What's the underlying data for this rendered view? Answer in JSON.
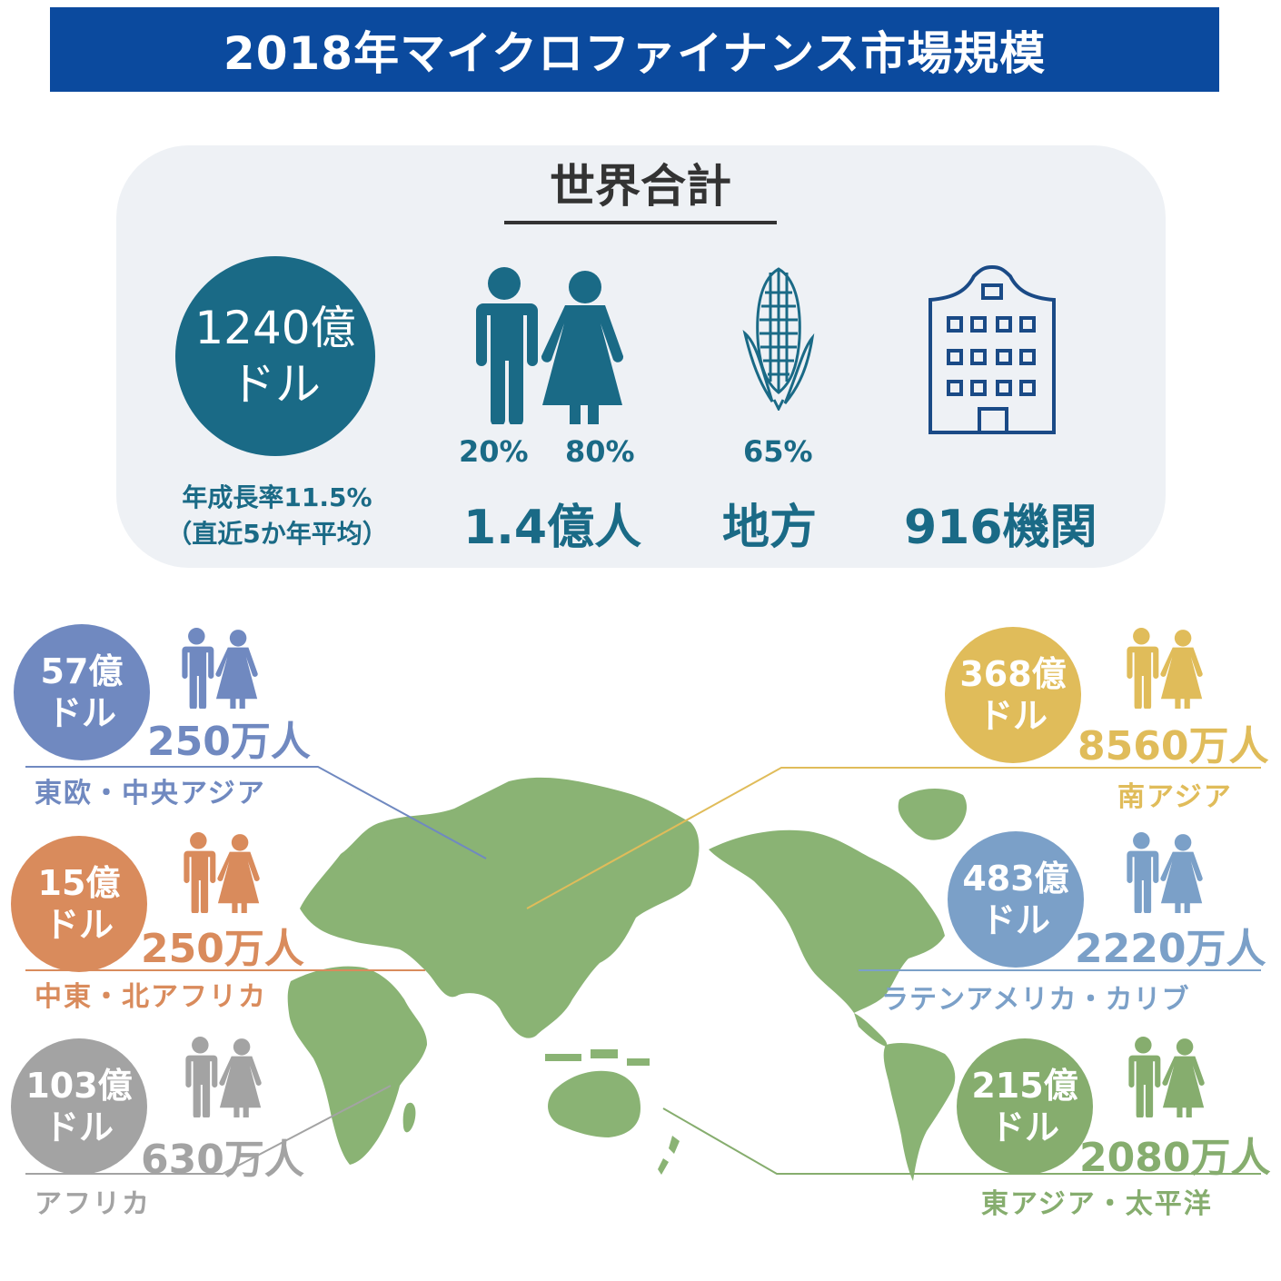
{
  "title": "2018年マイクロファイナンス市場規模",
  "world": {
    "heading": "世界合計",
    "total_line1": "1240億",
    "total_line2": "ドル",
    "growth_line1": "年成長率11.5%",
    "growth_line2": "（直近5か年平均）",
    "male_pct": "20%",
    "female_pct": "80%",
    "borrowers": "1.4億人",
    "rural_pct": "65%",
    "rural_label": "地方",
    "institutions": "916機関"
  },
  "regions": {
    "eeca": {
      "amount_line1": "57億",
      "amount_line2": "ドル",
      "borrowers": "250万人",
      "name": "東欧・中央アジア",
      "color": "#7089c0"
    },
    "mena": {
      "amount_line1": "15億",
      "amount_line2": "ドル",
      "borrowers": "250万人",
      "name": "中東・北アフリカ",
      "color": "#d98b5c"
    },
    "africa": {
      "amount_line1": "103億",
      "amount_line2": "ドル",
      "borrowers": "630万人",
      "name": "アフリカ",
      "color": "#a3a3a3"
    },
    "south_asia": {
      "amount_line1": "368億",
      "amount_line2": "ドル",
      "borrowers": "8560万人",
      "name": "南アジア",
      "color": "#e0bc5a"
    },
    "latam": {
      "amount_line1": "483億",
      "amount_line2": "ドル",
      "borrowers": "2220万人",
      "name": "ラテンアメリカ・カリブ",
      "color": "#7ba0c8"
    },
    "eap": {
      "amount_line1": "215億",
      "amount_line2": "ドル",
      "borrowers": "2080万人",
      "name": "東アジア・太平洋",
      "color": "#86ad6e"
    }
  },
  "colors": {
    "title_bg": "#0b4a9e",
    "teal": "#1a6a86",
    "map": "#8ab374",
    "panel_bg": "#eef1f5"
  }
}
